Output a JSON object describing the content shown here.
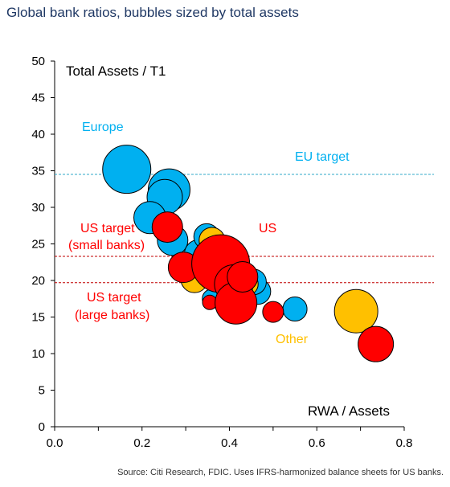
{
  "title": "Global bank ratios, bubbles sized by total assets",
  "source": "Source: Citi Research, FDIC. Uses IFRS-harmonized balance sheets for US banks.",
  "colors": {
    "europe": "#00b0f0",
    "us": "#ff0000",
    "other": "#ffc000",
    "eu_line": "#31a9c9",
    "us_line": "#c00000"
  },
  "chart_data": {
    "type": "scatter",
    "title": "Global bank ratios, bubbles sized by total assets",
    "xlabel": "RWA / Assets",
    "ylabel": "Total Assets / T1",
    "xlim": [
      0.0,
      0.8
    ],
    "ylim": [
      0,
      50
    ],
    "x_ticks": [
      "0.0",
      "0.2",
      "0.4",
      "0.6",
      "0.8"
    ],
    "y_ticks": [
      "0",
      "5",
      "10",
      "15",
      "20",
      "25",
      "30",
      "35",
      "40",
      "45",
      "50"
    ],
    "grid": false,
    "reference_lines": [
      {
        "label": "EU target",
        "y": 34.5,
        "color": "#31a9c9"
      },
      {
        "label": "US target (small banks)",
        "y": 23.3,
        "color": "#c00000"
      },
      {
        "label": "US target (large banks)",
        "y": 19.7,
        "color": "#c00000"
      }
    ],
    "annotations": [
      {
        "text": "Europe",
        "color": "#00b0f0"
      },
      {
        "text": "EU target",
        "color": "#00b0f0"
      },
      {
        "text": "US target",
        "color": "#ff0000"
      },
      {
        "text": "(small banks)",
        "color": "#ff0000"
      },
      {
        "text": "US target",
        "color": "#ff0000"
      },
      {
        "text": "(large banks)",
        "color": "#ff0000"
      },
      {
        "text": "US",
        "color": "#ff0000"
      },
      {
        "text": "Other",
        "color": "#ffc000"
      }
    ],
    "groups": [
      {
        "name": "Europe",
        "color": "#00b0f0",
        "points": [
          {
            "x": 0.165,
            "y": 35.2,
            "r": 30
          },
          {
            "x": 0.262,
            "y": 32.4,
            "r": 26
          },
          {
            "x": 0.252,
            "y": 31.4,
            "r": 22
          },
          {
            "x": 0.218,
            "y": 28.6,
            "r": 20
          },
          {
            "x": 0.27,
            "y": 25.5,
            "r": 19
          },
          {
            "x": 0.33,
            "y": 23.6,
            "r": 18
          },
          {
            "x": 0.348,
            "y": 26.0,
            "r": 16
          },
          {
            "x": 0.36,
            "y": 22.0,
            "r": 17
          },
          {
            "x": 0.345,
            "y": 20.5,
            "r": 14
          },
          {
            "x": 0.36,
            "y": 17.5,
            "r": 12
          },
          {
            "x": 0.395,
            "y": 20.4,
            "r": 16
          },
          {
            "x": 0.465,
            "y": 18.5,
            "r": 16
          },
          {
            "x": 0.455,
            "y": 19.8,
            "r": 16
          },
          {
            "x": 0.55,
            "y": 16.1,
            "r": 15
          }
        ]
      },
      {
        "name": "Other",
        "color": "#ffc000",
        "points": [
          {
            "x": 0.36,
            "y": 25.5,
            "r": 16
          },
          {
            "x": 0.32,
            "y": 20.2,
            "r": 17
          },
          {
            "x": 0.44,
            "y": 19.5,
            "r": 14
          },
          {
            "x": 0.69,
            "y": 15.8,
            "r": 27
          }
        ]
      },
      {
        "name": "US",
        "color": "#ff0000",
        "points": [
          {
            "x": 0.258,
            "y": 27.3,
            "r": 19
          },
          {
            "x": 0.295,
            "y": 21.8,
            "r": 19
          },
          {
            "x": 0.355,
            "y": 17.0,
            "r": 9
          },
          {
            "x": 0.38,
            "y": 22.3,
            "r": 36
          },
          {
            "x": 0.41,
            "y": 19.5,
            "r": 24
          },
          {
            "x": 0.415,
            "y": 16.9,
            "r": 26
          },
          {
            "x": 0.43,
            "y": 20.5,
            "r": 19
          },
          {
            "x": 0.5,
            "y": 15.7,
            "r": 13
          },
          {
            "x": 0.735,
            "y": 11.3,
            "r": 22
          }
        ]
      }
    ]
  }
}
